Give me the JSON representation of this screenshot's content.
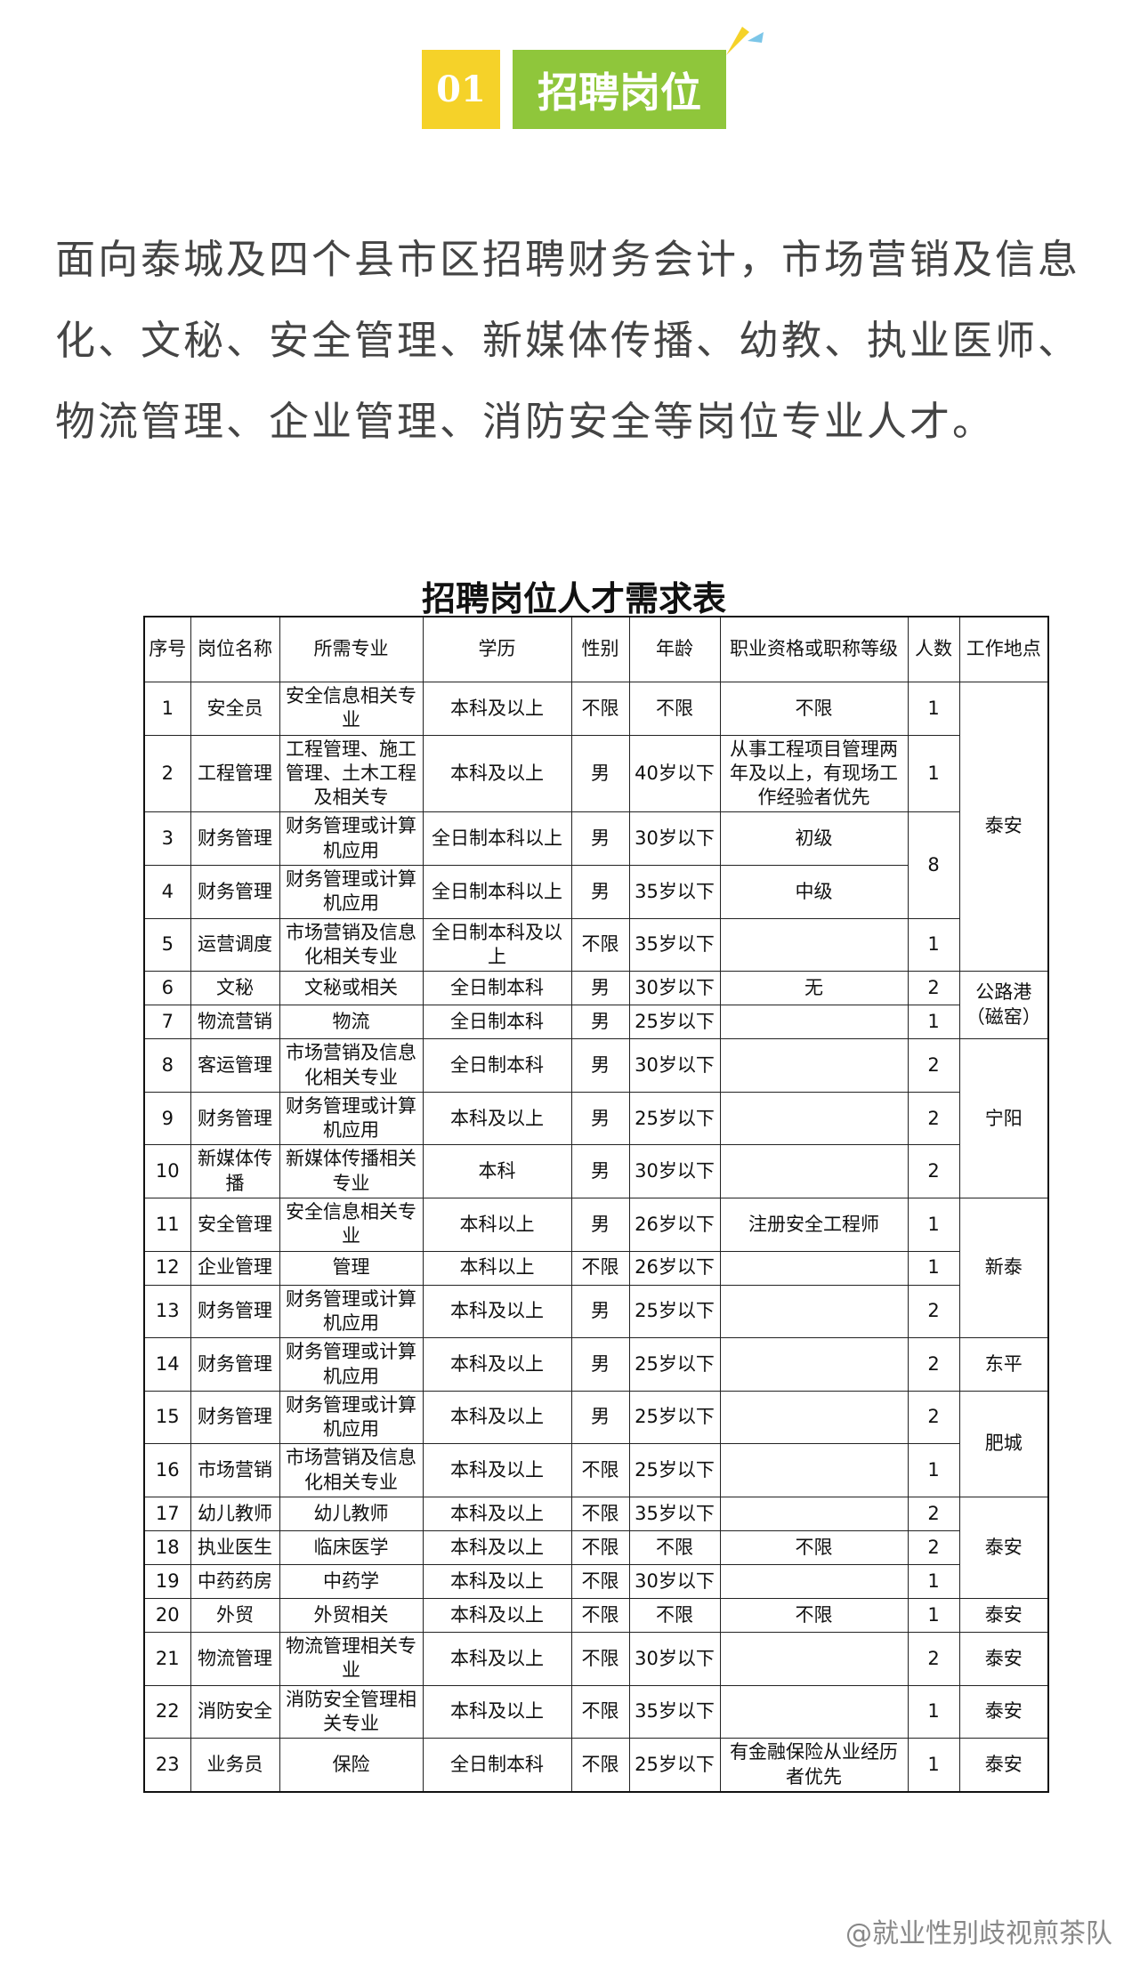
{
  "header": {
    "number": "01",
    "title": "招聘岗位"
  },
  "intro": "面向泰城及四个县市区招聘财务会计，市场营销及信息化、文秘、安全管理、新媒体传播、幼教、执业医师、物流管理、企业管理、消防安全等岗位专业人才。",
  "table": {
    "title": "招聘岗位人才需求表",
    "headers": [
      "序号",
      "岗位名称",
      "所需专业",
      "学历",
      "性别",
      "年龄",
      "职业资格或职称等级",
      "人数",
      "工作地点"
    ],
    "rows": [
      {
        "no": "1",
        "position": "安全员",
        "major": "安全信息相关专业",
        "education": "本科及以上",
        "gender": "不限",
        "age": "不限",
        "qualification": "不限",
        "count": "1",
        "location": "泰安"
      },
      {
        "no": "2",
        "position": "工程管理",
        "major": "工程管理、施工管理、土木工程及相关专",
        "education": "本科及以上",
        "gender": "男",
        "age": "40岁以下",
        "qualification": "从事工程项目管理两年及以上，有现场工作经验者优先",
        "count": "1"
      },
      {
        "no": "3",
        "position": "财务管理",
        "major": "财务管理或计算机应用",
        "education": "全日制本科以上",
        "gender": "男",
        "age": "30岁以下",
        "qualification": "初级",
        "count": "8"
      },
      {
        "no": "4",
        "position": "财务管理",
        "major": "财务管理或计算机应用",
        "education": "全日制本科以上",
        "gender": "男",
        "age": "35岁以下",
        "qualification": "中级"
      },
      {
        "no": "5",
        "position": "运营调度",
        "major": "市场营销及信息化相关专业",
        "education": "全日制本科及以上",
        "gender": "不限",
        "age": "35岁以下",
        "count": "1"
      },
      {
        "no": "6",
        "position": "文秘",
        "major": "文秘或相关",
        "education": "全日制本科",
        "gender": "男",
        "age": "30岁以下",
        "qualification": "无",
        "count": "2",
        "location": "公路港（磁窑）"
      },
      {
        "no": "7",
        "position": "物流营销",
        "major": "物流",
        "education": "全日制本科",
        "gender": "男",
        "age": "25岁以下",
        "count": "1"
      },
      {
        "no": "8",
        "position": "客运管理",
        "major": "市场营销及信息化相关专业",
        "education": "全日制本科",
        "gender": "男",
        "age": "30岁以下",
        "count": "2",
        "location": "宁阳"
      },
      {
        "no": "9",
        "position": "财务管理",
        "major": "财务管理或计算机应用",
        "education": "本科及以上",
        "gender": "男",
        "age": "25岁以下",
        "count": "2"
      },
      {
        "no": "10",
        "position": "新媒体传播",
        "major": "新媒体传播相关专业",
        "education": "本科",
        "gender": "男",
        "age": "30岁以下",
        "count": "2"
      },
      {
        "no": "11",
        "position": "安全管理",
        "major": "安全信息相关专业",
        "education": "本科以上",
        "gender": "男",
        "age": "26岁以下",
        "qualification": "注册安全工程师",
        "count": "1",
        "location": "新泰"
      },
      {
        "no": "12",
        "position": "企业管理",
        "major": "管理",
        "education": "本科以上",
        "gender": "不限",
        "age": "26岁以下",
        "count": "1"
      },
      {
        "no": "13",
        "position": "财务管理",
        "major": "财务管理或计算机应用",
        "education": "本科及以上",
        "gender": "男",
        "age": "25岁以下",
        "count": "2"
      },
      {
        "no": "14",
        "position": "财务管理",
        "major": "财务管理或计算机应用",
        "education": "本科及以上",
        "gender": "男",
        "age": "25岁以下",
        "count": "2",
        "location": "东平"
      },
      {
        "no": "15",
        "position": "财务管理",
        "major": "财务管理或计算机应用",
        "education": "本科及以上",
        "gender": "男",
        "age": "25岁以下",
        "count": "2",
        "location": "肥城"
      },
      {
        "no": "16",
        "position": "市场营销",
        "major": "市场营销及信息化相关专业",
        "education": "本科及以上",
        "gender": "不限",
        "age": "25岁以下",
        "count": "1"
      },
      {
        "no": "17",
        "position": "幼儿教师",
        "major": "幼儿教师",
        "education": "本科及以上",
        "gender": "不限",
        "age": "35岁以下",
        "count": "2",
        "location": "泰安"
      },
      {
        "no": "18",
        "position": "执业医生",
        "major": "临床医学",
        "education": "本科及以上",
        "gender": "不限",
        "age": "不限",
        "qualification": "不限",
        "count": "2"
      },
      {
        "no": "19",
        "position": "中药药房",
        "major": "中药学",
        "education": "本科及以上",
        "gender": "不限",
        "age": "30岁以下",
        "count": "1"
      },
      {
        "no": "20",
        "position": "外贸",
        "major": "外贸相关",
        "education": "本科及以上",
        "gender": "不限",
        "age": "不限",
        "qualification": "不限",
        "count": "1",
        "location": "泰安"
      },
      {
        "no": "21",
        "position": "物流管理",
        "major": "物流管理相关专业",
        "education": "本科及以上",
        "gender": "不限",
        "age": "30岁以下",
        "count": "2",
        "location": "泰安"
      },
      {
        "no": "22",
        "position": "消防安全",
        "major": "消防安全管理相关专业",
        "education": "本科及以上",
        "gender": "不限",
        "age": "35岁以下",
        "count": "1",
        "location": "泰安"
      },
      {
        "no": "23",
        "position": "业务员",
        "major": "保险",
        "education": "全日制本科",
        "gender": "不限",
        "age": "25岁以下",
        "qualification": "有金融保险从业经历者优先",
        "count": "1",
        "location": "泰安"
      }
    ]
  },
  "watermark": "@就业性别歧视煎茶队"
}
